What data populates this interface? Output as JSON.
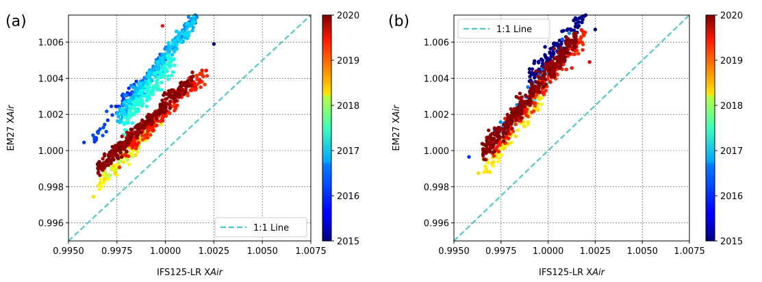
{
  "chart_data": [
    {
      "type": "scatter",
      "panel_label": "(a)",
      "xlabel_prefix": "IFS125-LR X",
      "xlabel_italic": "Air",
      "ylabel_prefix": "EM27 X",
      "ylabel_italic": "Air",
      "xlim": [
        0.995,
        1.0075
      ],
      "ylim": [
        0.995,
        1.0075
      ],
      "xticks": [
        "0.9950",
        "0.9975",
        "1.0000",
        "1.0025",
        "1.0050",
        "1.0075"
      ],
      "yticks": [
        "0.996",
        "0.998",
        "1.000",
        "1.002",
        "1.004",
        "1.006"
      ],
      "grid": true,
      "reference_line": {
        "label": "1:1 Line",
        "color": "#4ec9c9",
        "style": "dashed"
      },
      "legend_position": "lower right",
      "colorbar": {
        "min": 2015,
        "max": 2020,
        "ticks": [
          "2015",
          "2016",
          "2017",
          "2018",
          "2019",
          "2020"
        ],
        "colormap": "jet"
      },
      "clusters": [
        {
          "year": 2015.9,
          "n": 35,
          "x_range": [
            0.9962,
            0.9985
          ],
          "slope": 1.45,
          "y_at_x_min": 1.0005,
          "spread": 0.0004
        },
        {
          "year": 2016.2,
          "n": 110,
          "x_range": [
            0.9978,
            1.0018
          ],
          "slope": 1.4,
          "y_at_x_min": 1.0022,
          "spread": 0.0004
        },
        {
          "year": 2016.6,
          "n": 200,
          "x_range": [
            0.9975,
            1.0015
          ],
          "slope": 1.35,
          "y_at_x_min": 1.0018,
          "spread": 0.0004
        },
        {
          "year": 2017.0,
          "n": 150,
          "x_range": [
            0.9978,
            1.0005
          ],
          "slope": 1.3,
          "y_at_x_min": 1.0015,
          "spread": 0.0005
        },
        {
          "year": 2017.8,
          "n": 60,
          "x_range": [
            0.9968,
            0.9995
          ],
          "slope": 1.1,
          "y_at_x_min": 0.9985,
          "spread": 0.0004
        },
        {
          "year": 2018.2,
          "n": 60,
          "x_range": [
            0.9965,
            0.9998
          ],
          "slope": 1.2,
          "y_at_x_min": 0.998,
          "spread": 0.0004
        },
        {
          "year": 2019.2,
          "n": 150,
          "x_range": [
            0.9975,
            1.0022
          ],
          "slope": 1.05,
          "y_at_x_min": 0.9995,
          "spread": 0.0004
        },
        {
          "year": 2019.9,
          "n": 300,
          "x_range": [
            0.9965,
            1.0015
          ],
          "slope": 1.02,
          "y_at_x_min": 0.999,
          "spread": 0.0004
        }
      ],
      "outliers": [
        {
          "x": 0.99985,
          "y": 1.0069,
          "year": 2019.3
        },
        {
          "x": 1.0025,
          "y": 1.0059,
          "year": 2015.0
        },
        {
          "x": 0.9963,
          "y": 0.99745,
          "year": 2018.3
        },
        {
          "x": 0.9958,
          "y": 1.00045,
          "year": 2015.9
        }
      ]
    },
    {
      "type": "scatter",
      "panel_label": "(b)",
      "xlabel_prefix": "IFS125-LR X",
      "xlabel_italic": "Air",
      "ylabel_prefix": "EM27 X",
      "ylabel_italic": "Air",
      "xlim": [
        0.995,
        1.0075
      ],
      "ylim": [
        0.995,
        1.0075
      ],
      "xticks": [
        "0.9950",
        "0.9975",
        "1.0000",
        "1.0025",
        "1.0050",
        "1.0075"
      ],
      "yticks": [
        "0.996",
        "0.998",
        "1.000",
        "1.002",
        "1.004",
        "1.006"
      ],
      "grid": true,
      "reference_line": {
        "label": "1:1 Line",
        "color": "#4ec9c9",
        "style": "dashed"
      },
      "legend_position": "upper left",
      "colorbar": {
        "min": 2015,
        "max": 2020,
        "ticks": [
          "2015",
          "2016",
          "2017",
          "2018",
          "2019",
          "2020"
        ],
        "colormap": "jet"
      },
      "clusters": [
        {
          "year": 2015.0,
          "n": 110,
          "x_range": [
            0.999,
            1.002
          ],
          "slope": 1.2,
          "y_at_x_min": 1.004,
          "spread": 0.0005
        },
        {
          "year": 2016.2,
          "n": 40,
          "x_range": [
            0.9965,
            1.0015
          ],
          "slope": 1.4,
          "y_at_x_min": 0.9998,
          "spread": 0.0004
        },
        {
          "year": 2017.0,
          "n": 40,
          "x_range": [
            0.9975,
            1.0005
          ],
          "slope": 1.3,
          "y_at_x_min": 1.0008,
          "spread": 0.0004
        },
        {
          "year": 2018.2,
          "n": 70,
          "x_range": [
            0.9965,
            0.9998
          ],
          "slope": 1.3,
          "y_at_x_min": 0.9988,
          "spread": 0.0005
        },
        {
          "year": 2019.2,
          "n": 180,
          "x_range": [
            0.997,
            1.002
          ],
          "slope": 1.3,
          "y_at_x_min": 1.0,
          "spread": 0.0005
        },
        {
          "year": 2019.9,
          "n": 380,
          "x_range": [
            0.9965,
            1.0015
          ],
          "slope": 1.3,
          "y_at_x_min": 0.9998,
          "spread": 0.0005
        }
      ],
      "outliers": [
        {
          "x": 1.0025,
          "y": 1.0067,
          "year": 2015.0
        },
        {
          "x": 1.0022,
          "y": 1.0049,
          "year": 2019.5
        },
        {
          "x": 0.9958,
          "y": 0.99965,
          "year": 2015.9
        },
        {
          "x": 0.9963,
          "y": 0.99875,
          "year": 2018.3
        }
      ]
    }
  ]
}
